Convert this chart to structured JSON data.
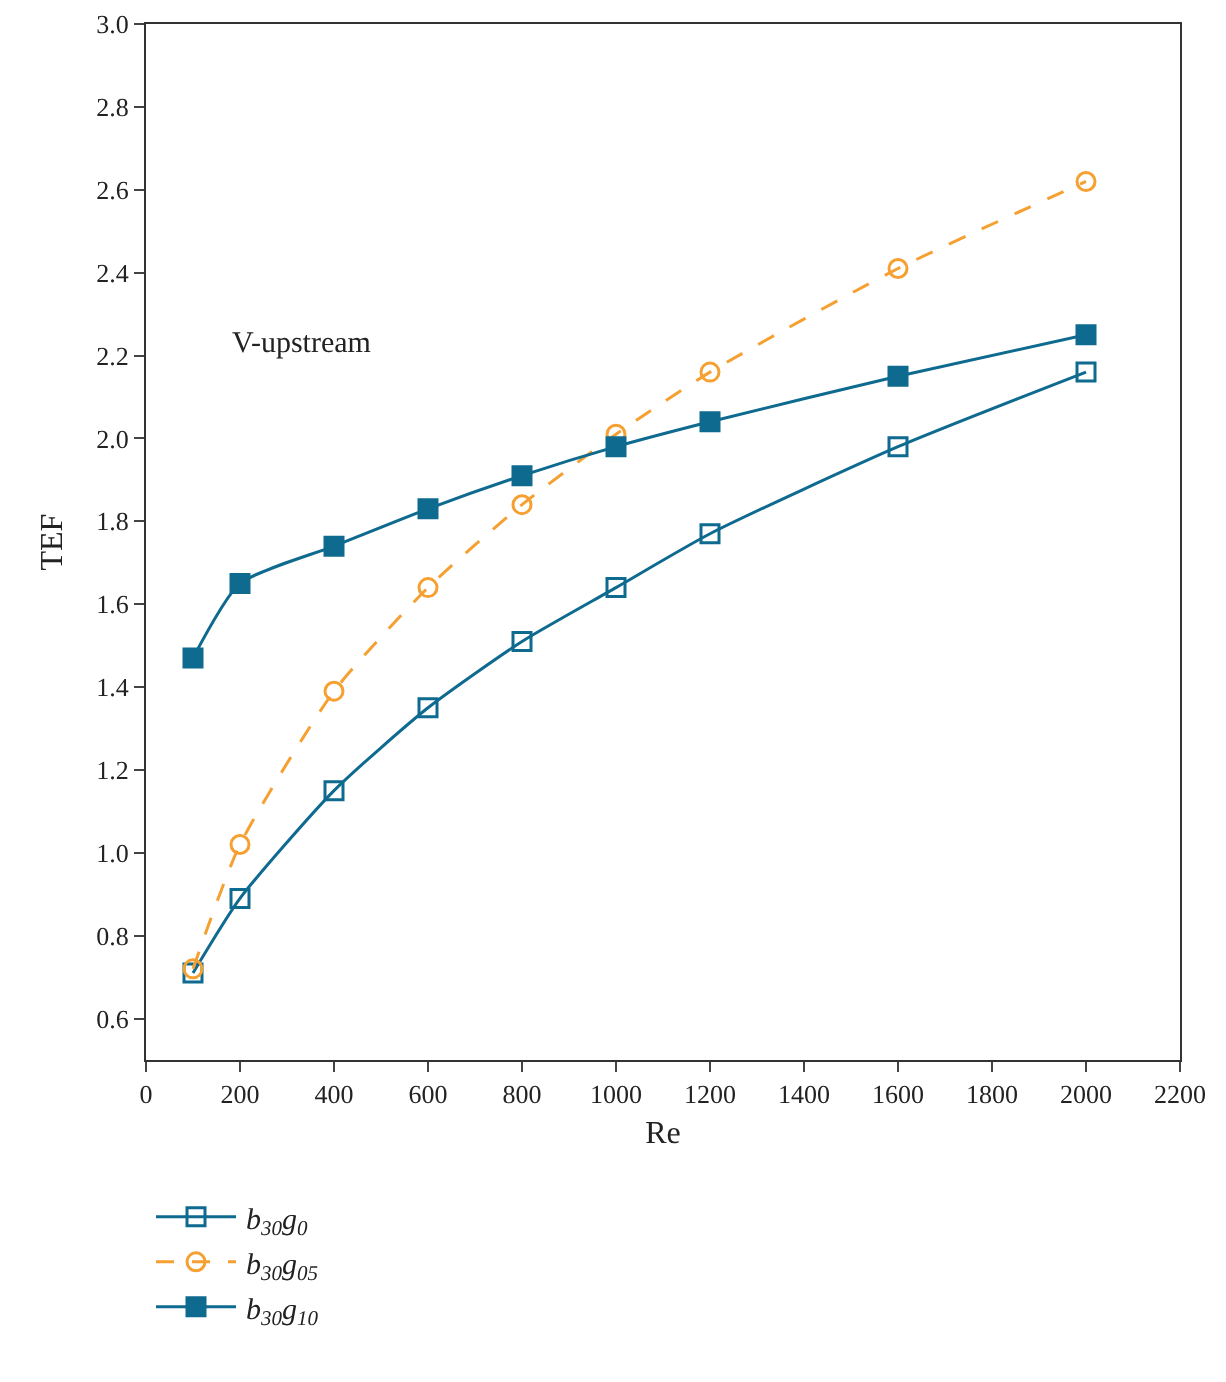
{
  "chart_data": {
    "type": "line",
    "xlabel": "Re",
    "ylabel": "TEF",
    "annotations": [
      "V-upstream"
    ],
    "x": [
      100,
      200,
      400,
      600,
      800,
      1000,
      1200,
      1600,
      2000
    ],
    "series": [
      {
        "name": "b$_{30}$g$_{0}$",
        "color": "#0e6a8f",
        "marker": "square-open",
        "line_style": "solid",
        "values": [
          0.71,
          0.89,
          1.15,
          1.35,
          1.51,
          1.64,
          1.77,
          1.98,
          2.16
        ]
      },
      {
        "name": "b$_{30}$g$_{05}$",
        "color": "#f5a030",
        "marker": "circle-open",
        "line_style": "dashed",
        "values": [
          0.72,
          1.02,
          1.39,
          1.64,
          1.84,
          2.01,
          2.16,
          2.41,
          2.62
        ]
      },
      {
        "name": "b$_{30}$g$_{10}$",
        "color": "#0e6a8f",
        "marker": "square",
        "line_style": "solid",
        "values": [
          1.47,
          1.65,
          1.74,
          1.83,
          1.91,
          1.98,
          2.04,
          2.15,
          2.25
        ]
      }
    ],
    "xlim": [
      0,
      2200
    ],
    "xticks": [
      0,
      200,
      400,
      600,
      800,
      1000,
      1200,
      1400,
      1600,
      1800,
      2000,
      2200
    ],
    "ylim": [
      0.5,
      3.0
    ],
    "yticks": [
      0.6,
      0.8,
      {
        "value": 1,
        "label": "1.0"
      },
      1.2,
      1.4,
      1.6,
      1.8,
      {
        "value": 2,
        "label": "2.0"
      },
      2.2,
      2.4,
      2.6,
      2.8,
      {
        "value": 3,
        "label": "3.0"
      }
    ],
    "grid": false,
    "legend": "bottom"
  }
}
